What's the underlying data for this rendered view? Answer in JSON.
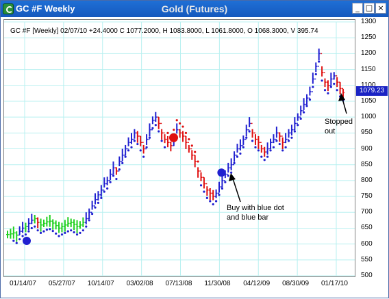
{
  "window": {
    "title": "GC #F Weekly",
    "chart_title": "Gold (Futures)",
    "buttons": {
      "minimize": "_",
      "maximize": "□",
      "close": "×"
    }
  },
  "chart_data": {
    "type": "bar",
    "symbol": "GC #F",
    "header": "GC #F [Weekly] 02/07/10 +24.4000 C 1077.2000, H 1083.8000, L 1061.8000, O 1068.3000, V 395.74",
    "last_price_label": "1079.23",
    "y_ticks": [
      1300,
      1250,
      1200,
      1150,
      1100,
      1050,
      1000,
      950,
      900,
      850,
      800,
      750,
      700,
      650,
      600,
      550,
      500
    ],
    "ylim": [
      500,
      1300
    ],
    "x_ticks": [
      "01/14/07",
      "05/27/07",
      "10/14/07",
      "03/02/08",
      "07/13/08",
      "11/30/08",
      "04/12/09",
      "08/30/09",
      "01/17/10"
    ],
    "grid": true,
    "colors": {
      "up": "#2020d0",
      "neutral": "#20d020",
      "down": "#e01010",
      "stop_blue": "#2020d0",
      "stop_red": "#e01010"
    },
    "series": [
      {
        "values": [
          630,
          632,
          635,
          628,
          640,
          650,
          655,
          665,
          675,
          680,
          668,
          660,
          665,
          670,
          672,
          666,
          658,
          650,
          655,
          660,
          665,
          668,
          662,
          655,
          660,
          668,
          680,
          700,
          720,
          740,
          755,
          770,
          790,
          800,
          820,
          840,
          830,
          860,
          880,
          900,
          920,
          930,
          950,
          940,
          920,
          900,
          930,
          960,
          990,
          1000,
          980,
          950,
          930,
          920,
          910,
          930,
          960,
          950,
          940,
          920,
          900,
          880,
          860,
          830,
          810,
          790,
          770,
          760,
          750,
          760,
          780,
          800,
          820,
          840,
          850,
          880,
          900,
          910,
          930,
          960,
          980,
          950,
          930,
          920,
          900,
          890,
          900,
          920,
          930,
          950,
          940,
          920,
          930,
          950,
          960,
          980,
          1000,
          1020,
          1040,
          1060,
          1080,
          1120,
          1160,
          1200,
          1140,
          1110,
          1100,
          1120,
          1130,
          1110,
          1090,
          1077
        ]
      }
    ],
    "stop_markers": {
      "blue": [
        {
          "x": "01/14/07",
          "y": 610
        },
        {
          "x": "11/30/08",
          "y": 825
        }
      ],
      "red": [
        {
          "x": "07/13/08",
          "y": 935
        }
      ]
    }
  },
  "annotations": {
    "buy": [
      "Buy with blue dot",
      "and blue bar"
    ],
    "stopped": [
      "Stopped",
      "out"
    ]
  }
}
